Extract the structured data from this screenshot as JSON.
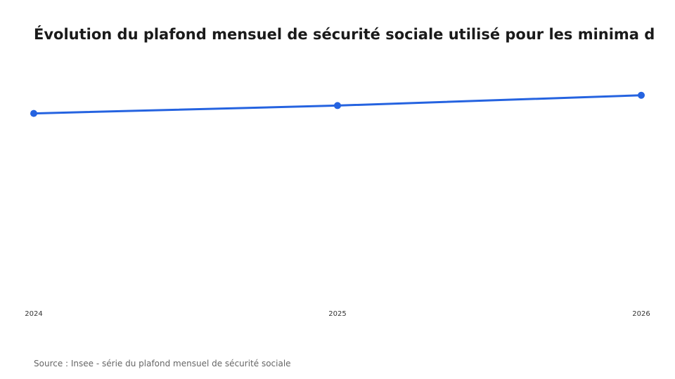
{
  "chart_data": {
    "type": "line",
    "title": "Évolution du plafond mensuel de sécurité sociale utilisé pour les minima d",
    "categories": [
      "2024",
      "2025",
      "2026"
    ],
    "series": [
      {
        "values": [
          3864,
          3925,
          4005
        ]
      }
    ],
    "ylim": [
      2400,
      4200
    ],
    "xlabel": "",
    "ylabel": "",
    "grid": false,
    "legend": "none",
    "line_color": "#2563e0"
  },
  "source": "Source : Insee - série du plafond mensuel de sécurité sociale"
}
